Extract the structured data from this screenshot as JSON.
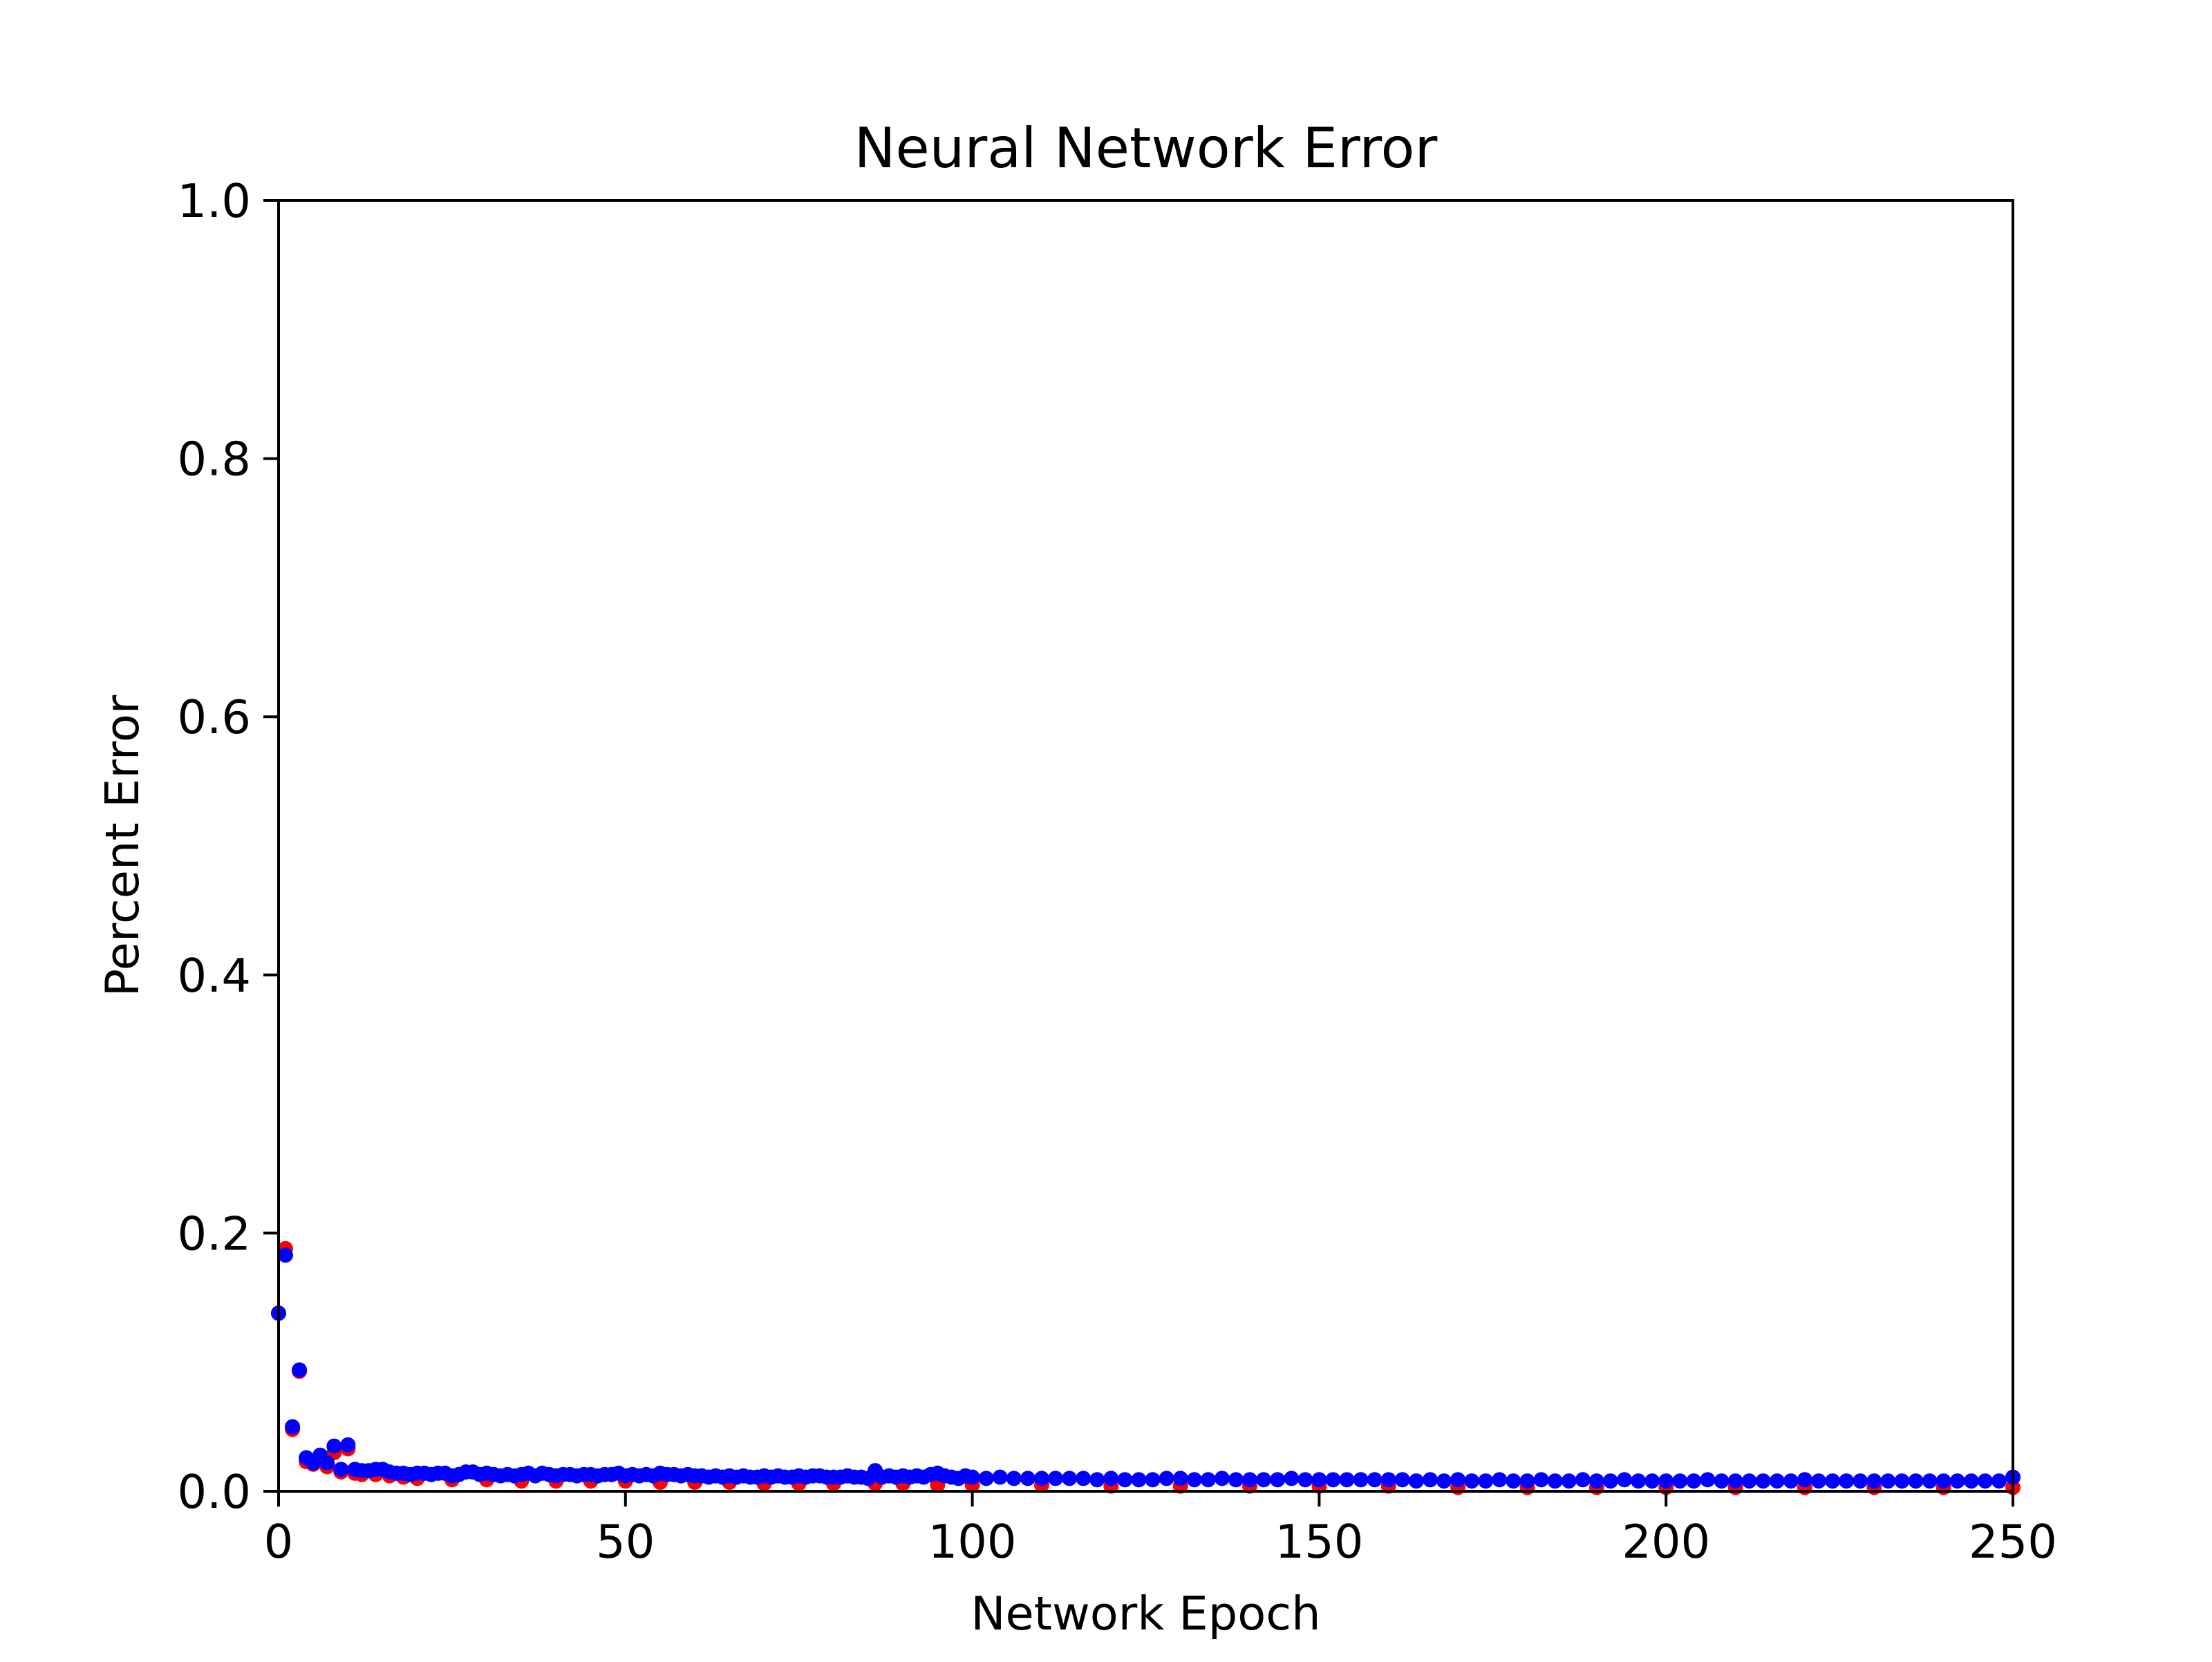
{
  "chart_data": {
    "type": "scatter",
    "title": "Neural Network Error",
    "xlabel": "Network Epoch",
    "ylabel": "Percent Error",
    "xlim": [
      0,
      250
    ],
    "ylim": [
      0,
      1.0
    ],
    "xticks": [
      0,
      50,
      100,
      150,
      200,
      250
    ],
    "xtick_labels": [
      "0",
      "50",
      "100",
      "150",
      "200",
      "250"
    ],
    "yticks": [
      0.0,
      0.2,
      0.4,
      0.6,
      0.8,
      1.0
    ],
    "ytick_labels": [
      "0.0",
      "0.2",
      "0.4",
      "0.6",
      "0.8",
      "1.0"
    ],
    "grid": false,
    "legend": "none",
    "series": [
      {
        "color": "#ff0000",
        "points": [
          [
            0,
            0.138
          ],
          [
            1,
            0.188
          ],
          [
            2,
            0.048
          ],
          [
            3,
            0.093
          ],
          [
            4,
            0.023
          ],
          [
            5,
            0.021
          ],
          [
            6,
            0.024
          ],
          [
            7,
            0.019
          ],
          [
            8,
            0.03
          ],
          [
            9,
            0.015
          ],
          [
            10,
            0.033
          ],
          [
            11,
            0.014
          ],
          [
            12,
            0.013
          ],
          [
            14,
            0.013
          ],
          [
            16,
            0.012
          ],
          [
            18,
            0.011
          ],
          [
            20,
            0.01
          ],
          [
            25,
            0.009
          ],
          [
            30,
            0.009
          ],
          [
            35,
            0.008
          ],
          [
            40,
            0.008
          ],
          [
            45,
            0.008
          ],
          [
            50,
            0.008
          ],
          [
            55,
            0.007
          ],
          [
            60,
            0.007
          ],
          [
            65,
            0.007
          ],
          [
            70,
            0.006
          ],
          [
            75,
            0.006
          ],
          [
            80,
            0.006
          ],
          [
            86,
            0.006
          ],
          [
            90,
            0.006
          ],
          [
            95,
            0.005
          ],
          [
            100,
            0.005
          ],
          [
            110,
            0.005
          ],
          [
            120,
            0.004
          ],
          [
            130,
            0.004
          ],
          [
            140,
            0.004
          ],
          [
            150,
            0.004
          ],
          [
            160,
            0.004
          ],
          [
            170,
            0.003
          ],
          [
            180,
            0.003
          ],
          [
            190,
            0.003
          ],
          [
            200,
            0.003
          ],
          [
            210,
            0.003
          ],
          [
            220,
            0.003
          ],
          [
            230,
            0.003
          ],
          [
            240,
            0.003
          ],
          [
            250,
            0.003
          ]
        ]
      },
      {
        "color": "#0000ff",
        "points": [
          [
            0,
            0.138
          ],
          [
            1,
            0.183
          ],
          [
            2,
            0.05
          ],
          [
            3,
            0.094
          ],
          [
            4,
            0.026
          ],
          [
            5,
            0.022
          ],
          [
            6,
            0.028
          ],
          [
            7,
            0.022
          ],
          [
            8,
            0.035
          ],
          [
            9,
            0.017
          ],
          [
            10,
            0.036
          ],
          [
            11,
            0.017
          ],
          [
            12,
            0.016
          ],
          [
            13,
            0.016
          ],
          [
            14,
            0.017
          ],
          [
            15,
            0.017
          ],
          [
            16,
            0.015
          ],
          [
            17,
            0.014
          ],
          [
            18,
            0.014
          ],
          [
            19,
            0.013
          ],
          [
            20,
            0.014
          ],
          [
            21,
            0.014
          ],
          [
            22,
            0.013
          ],
          [
            23,
            0.014
          ],
          [
            24,
            0.014
          ],
          [
            25,
            0.012
          ],
          [
            26,
            0.013
          ],
          [
            27,
            0.015
          ],
          [
            28,
            0.015
          ],
          [
            29,
            0.013
          ],
          [
            30,
            0.014
          ],
          [
            31,
            0.013
          ],
          [
            32,
            0.012
          ],
          [
            33,
            0.013
          ],
          [
            34,
            0.012
          ],
          [
            35,
            0.013
          ],
          [
            36,
            0.014
          ],
          [
            37,
            0.012
          ],
          [
            38,
            0.014
          ],
          [
            39,
            0.013
          ],
          [
            40,
            0.012
          ],
          [
            41,
            0.013
          ],
          [
            42,
            0.013
          ],
          [
            43,
            0.012
          ],
          [
            44,
            0.013
          ],
          [
            45,
            0.013
          ],
          [
            46,
            0.012
          ],
          [
            47,
            0.013
          ],
          [
            48,
            0.013
          ],
          [
            49,
            0.014
          ],
          [
            50,
            0.012
          ],
          [
            51,
            0.013
          ],
          [
            52,
            0.012
          ],
          [
            53,
            0.013
          ],
          [
            54,
            0.012
          ],
          [
            55,
            0.014
          ],
          [
            56,
            0.013
          ],
          [
            57,
            0.013
          ],
          [
            58,
            0.012
          ],
          [
            59,
            0.013
          ],
          [
            60,
            0.012
          ],
          [
            61,
            0.012
          ],
          [
            62,
            0.011
          ],
          [
            63,
            0.012
          ],
          [
            64,
            0.011
          ],
          [
            65,
            0.012
          ],
          [
            66,
            0.011
          ],
          [
            67,
            0.012
          ],
          [
            68,
            0.011
          ],
          [
            69,
            0.011
          ],
          [
            70,
            0.012
          ],
          [
            71,
            0.011
          ],
          [
            72,
            0.012
          ],
          [
            73,
            0.011
          ],
          [
            74,
            0.011
          ],
          [
            75,
            0.012
          ],
          [
            76,
            0.011
          ],
          [
            77,
            0.012
          ],
          [
            78,
            0.012
          ],
          [
            79,
            0.011
          ],
          [
            80,
            0.011
          ],
          [
            81,
            0.011
          ],
          [
            82,
            0.012
          ],
          [
            83,
            0.011
          ],
          [
            84,
            0.011
          ],
          [
            85,
            0.01
          ],
          [
            86,
            0.016
          ],
          [
            87,
            0.011
          ],
          [
            88,
            0.012
          ],
          [
            89,
            0.011
          ],
          [
            90,
            0.012
          ],
          [
            91,
            0.011
          ],
          [
            92,
            0.012
          ],
          [
            93,
            0.011
          ],
          [
            94,
            0.013
          ],
          [
            95,
            0.014
          ],
          [
            96,
            0.012
          ],
          [
            97,
            0.011
          ],
          [
            98,
            0.01
          ],
          [
            99,
            0.012
          ],
          [
            100,
            0.011
          ],
          [
            102,
            0.01
          ],
          [
            104,
            0.011
          ],
          [
            106,
            0.01
          ],
          [
            108,
            0.01
          ],
          [
            110,
            0.01
          ],
          [
            112,
            0.01
          ],
          [
            114,
            0.01
          ],
          [
            116,
            0.01
          ],
          [
            118,
            0.009
          ],
          [
            120,
            0.01
          ],
          [
            122,
            0.009
          ],
          [
            124,
            0.009
          ],
          [
            126,
            0.009
          ],
          [
            128,
            0.01
          ],
          [
            130,
            0.01
          ],
          [
            132,
            0.009
          ],
          [
            134,
            0.009
          ],
          [
            136,
            0.01
          ],
          [
            138,
            0.009
          ],
          [
            140,
            0.009
          ],
          [
            142,
            0.009
          ],
          [
            144,
            0.009
          ],
          [
            146,
            0.01
          ],
          [
            148,
            0.009
          ],
          [
            150,
            0.009
          ],
          [
            152,
            0.009
          ],
          [
            154,
            0.009
          ],
          [
            156,
            0.009
          ],
          [
            158,
            0.009
          ],
          [
            160,
            0.009
          ],
          [
            162,
            0.009
          ],
          [
            164,
            0.008
          ],
          [
            166,
            0.009
          ],
          [
            168,
            0.008
          ],
          [
            170,
            0.009
          ],
          [
            172,
            0.008
          ],
          [
            174,
            0.008
          ],
          [
            176,
            0.009
          ],
          [
            178,
            0.008
          ],
          [
            180,
            0.008
          ],
          [
            182,
            0.009
          ],
          [
            184,
            0.008
          ],
          [
            186,
            0.008
          ],
          [
            188,
            0.009
          ],
          [
            190,
            0.008
          ],
          [
            192,
            0.008
          ],
          [
            194,
            0.009
          ],
          [
            196,
            0.008
          ],
          [
            198,
            0.008
          ],
          [
            200,
            0.008
          ],
          [
            202,
            0.008
          ],
          [
            204,
            0.008
          ],
          [
            206,
            0.009
          ],
          [
            208,
            0.008
          ],
          [
            210,
            0.008
          ],
          [
            212,
            0.008
          ],
          [
            214,
            0.008
          ],
          [
            216,
            0.008
          ],
          [
            218,
            0.008
          ],
          [
            220,
            0.009
          ],
          [
            222,
            0.008
          ],
          [
            224,
            0.008
          ],
          [
            226,
            0.008
          ],
          [
            228,
            0.008
          ],
          [
            230,
            0.008
          ],
          [
            232,
            0.008
          ],
          [
            234,
            0.008
          ],
          [
            236,
            0.008
          ],
          [
            238,
            0.008
          ],
          [
            240,
            0.008
          ],
          [
            242,
            0.008
          ],
          [
            244,
            0.008
          ],
          [
            246,
            0.008
          ],
          [
            248,
            0.008
          ],
          [
            250,
            0.011
          ]
        ]
      }
    ]
  }
}
